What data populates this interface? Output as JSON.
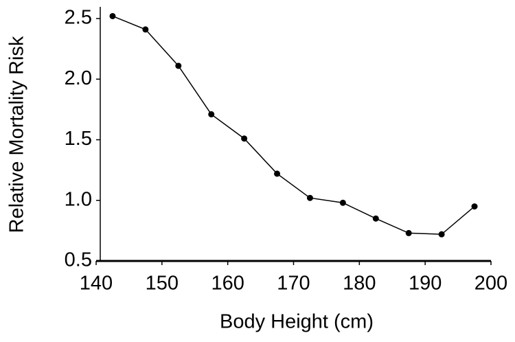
{
  "chart_data": {
    "type": "line",
    "xlabel": "Body Height (cm)",
    "ylabel": "Relative Mortality Risk",
    "x": [
      142.5,
      147.5,
      152.5,
      157.5,
      162.5,
      167.5,
      172.5,
      177.5,
      182.5,
      187.5,
      192.5,
      197.5
    ],
    "values": [
      2.52,
      2.41,
      2.11,
      1.71,
      1.51,
      1.22,
      1.02,
      0.98,
      0.85,
      0.73,
      0.72,
      0.95
    ],
    "color": "#000000",
    "xlim": [
      140,
      200
    ],
    "xticks": [
      140,
      150,
      160,
      170,
      180,
      190,
      200
    ],
    "ylim": [
      0.5,
      2.5
    ],
    "yticks": [
      0.5,
      {
        "value": 1.0,
        "label": "1.0"
      },
      1.5,
      {
        "value": 2.0,
        "label": "2.0"
      },
      2.5
    ],
    "grid": false
  }
}
